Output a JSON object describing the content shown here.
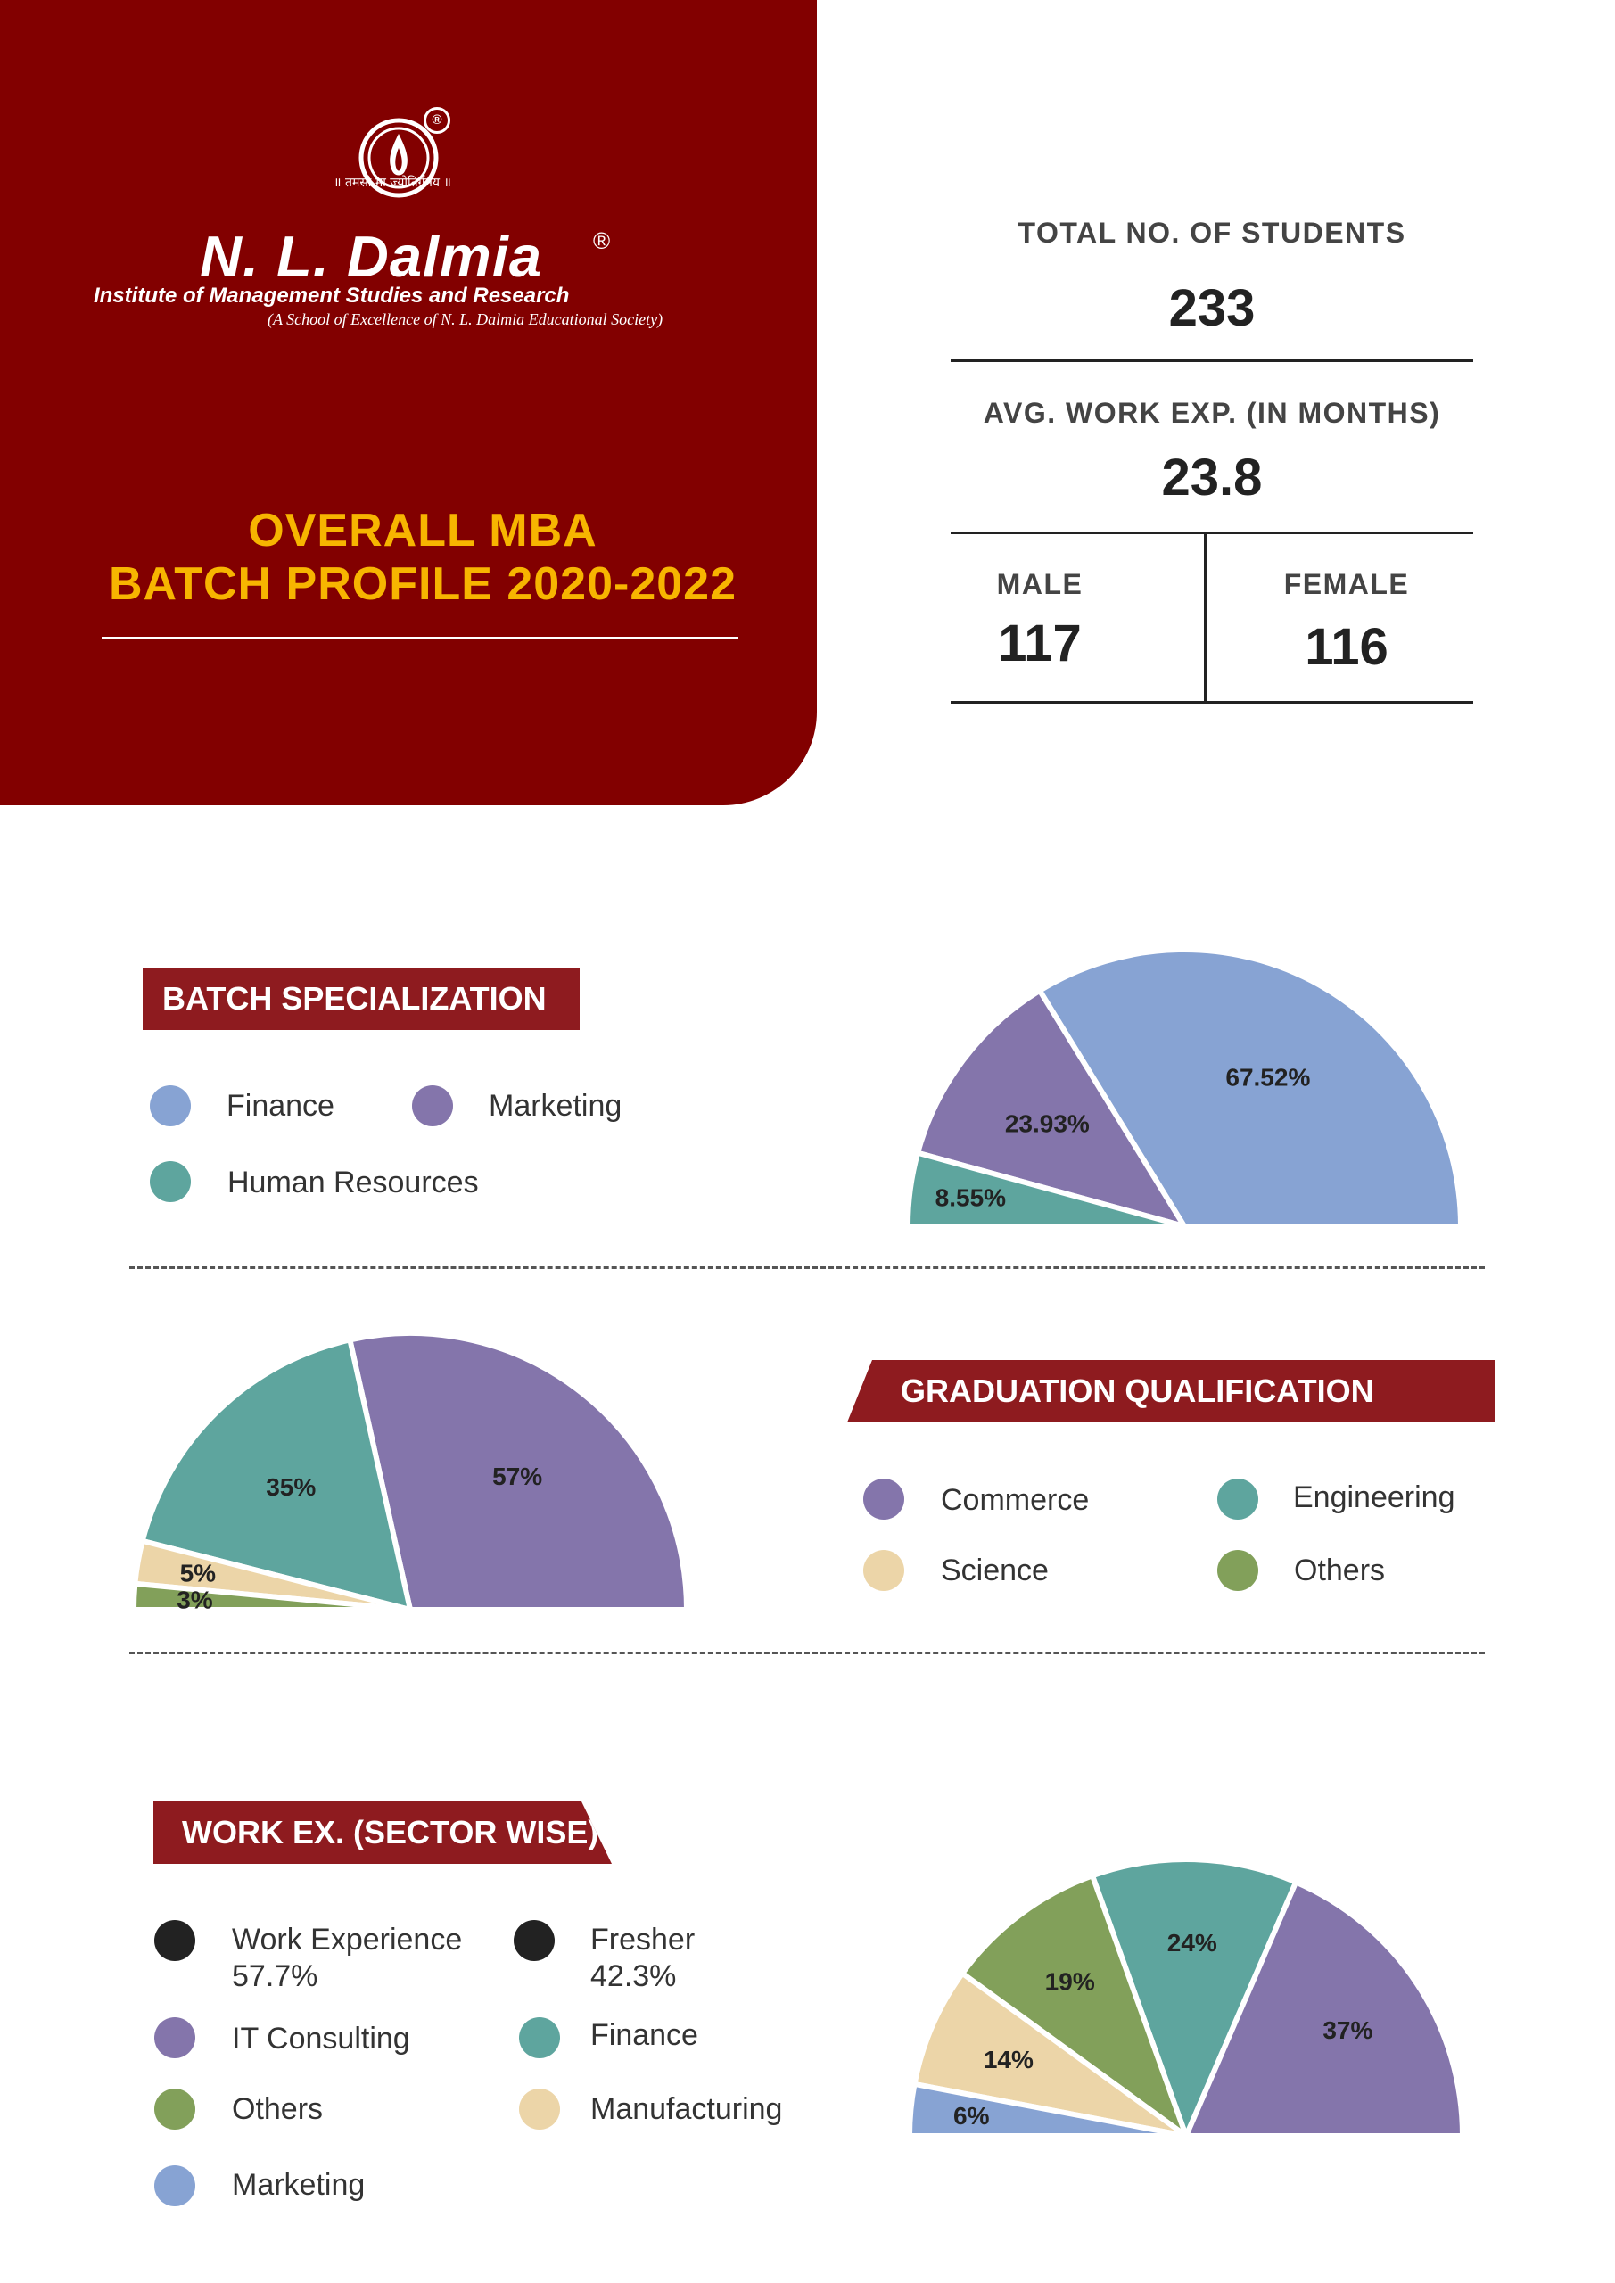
{
  "header": {
    "brand": "N. L. Dalmia",
    "brand_reg": "®",
    "emblem_reg": "®",
    "motto": "॥ तमसो मा ज्योतिर्गमय ॥",
    "institute": "Institute of Management Studies and Research",
    "institute_sub": "(A School of Excellence of N. L. Dalmia Educational Society)",
    "title_line1": "OVERALL MBA",
    "title_line2": "BATCH PROFILE 2020-2022"
  },
  "stats": {
    "total_label": "TOTAL NO. OF STUDENTS",
    "total_value": "233",
    "workexp_label": "AVG. WORK EXP. (IN MONTHS)",
    "workexp_value": "23.8",
    "male_label": "MALE",
    "male_value": "117",
    "female_label": "FEMALE",
    "female_value": "116"
  },
  "colors": {
    "maroon": "#820000",
    "banner": "#8e1b1f",
    "gold": "#f7b500",
    "blue": "#87a3d3",
    "purple": "#8475ab",
    "teal": "#5ea59e",
    "cream": "#ecd5a8",
    "green": "#82a05a",
    "black": "#222222"
  },
  "sections": {
    "specialization": {
      "title": "BATCH SPECIALIZATION",
      "legend": [
        {
          "label": "Finance",
          "color": "#87a3d3"
        },
        {
          "label": "Marketing",
          "color": "#8475ab"
        },
        {
          "label": "Human Resources",
          "color": "#5ea59e"
        }
      ]
    },
    "graduation": {
      "title": "GRADUATION QUALIFICATION",
      "legend": [
        {
          "label": "Commerce",
          "color": "#8475ab"
        },
        {
          "label": "Engineering",
          "color": "#5ea59e"
        },
        {
          "label": "Science",
          "color": "#ecd5a8"
        },
        {
          "label": "Others",
          "color": "#82a05a"
        }
      ]
    },
    "workex": {
      "title": "WORK EX. (SECTOR WISE)",
      "legend": [
        {
          "label": "Work Experience",
          "sub": "57.7%",
          "color": "#222222"
        },
        {
          "label": "Fresher",
          "sub": "42.3%",
          "color": "#222222"
        },
        {
          "label": "IT Consulting",
          "color": "#8475ab"
        },
        {
          "label": "Finance",
          "color": "#5ea59e"
        },
        {
          "label": "Others",
          "color": "#82a05a"
        },
        {
          "label": "Manufacturing",
          "color": "#ecd5a8"
        },
        {
          "label": "Marketing",
          "color": "#87a3d3"
        }
      ]
    }
  },
  "chart_data": [
    {
      "type": "pie",
      "subtype": "semicircle",
      "title": "BATCH SPECIALIZATION",
      "slices": [
        {
          "label": "Finance",
          "value": 67.52,
          "display": "67.52%",
          "color": "#87a3d3"
        },
        {
          "label": "Marketing",
          "value": 23.93,
          "display": "23.93%",
          "color": "#8475ab"
        },
        {
          "label": "Human Resources",
          "value": 8.55,
          "display": "8.55%",
          "color": "#5ea59e"
        }
      ]
    },
    {
      "type": "pie",
      "subtype": "semicircle",
      "title": "GRADUATION QUALIFICATION",
      "slices": [
        {
          "label": "Commerce",
          "value": 57,
          "display": "57%",
          "color": "#8475ab"
        },
        {
          "label": "Engineering",
          "value": 35,
          "display": "35%",
          "color": "#5ea59e"
        },
        {
          "label": "Science",
          "value": 5,
          "display": "5%",
          "color": "#ecd5a8"
        },
        {
          "label": "Others",
          "value": 3,
          "display": "3%",
          "color": "#82a05a"
        }
      ]
    },
    {
      "type": "pie",
      "subtype": "semicircle",
      "title": "WORK EX. (SECTOR WISE)",
      "slices": [
        {
          "label": "IT Consulting",
          "value": 37,
          "display": "37%",
          "color": "#8475ab"
        },
        {
          "label": "Finance",
          "value": 24,
          "display": "24%",
          "color": "#5ea59e"
        },
        {
          "label": "Others",
          "value": 19,
          "display": "19%",
          "color": "#82a05a"
        },
        {
          "label": "Manufacturing",
          "value": 14,
          "display": "14%",
          "color": "#ecd5a8"
        },
        {
          "label": "Marketing",
          "value": 6,
          "display": "6%",
          "color": "#87a3d3"
        }
      ]
    }
  ]
}
